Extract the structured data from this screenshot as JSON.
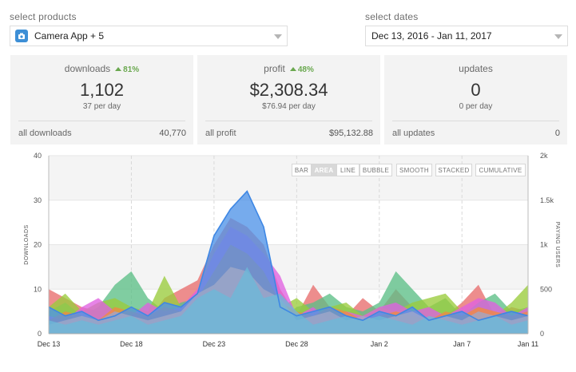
{
  "products": {
    "label": "select products",
    "value": "Camera App + 5"
  },
  "dates": {
    "label": "select dates",
    "value": "Dec 13, 2016 - Jan 11, 2017"
  },
  "cards": {
    "downloads": {
      "title": "downloads",
      "delta": "81%",
      "value": "1,102",
      "per_day": "37 per day",
      "footer_label": "all downloads",
      "footer_value": "40,770"
    },
    "profit": {
      "title": "profit",
      "delta": "48%",
      "value": "$2,308.34",
      "per_day": "$76.94 per day",
      "footer_label": "all profit",
      "footer_value": "$95,132.88"
    },
    "updates": {
      "title": "updates",
      "value": "0",
      "per_day": "0 per day",
      "footer_label": "all updates",
      "footer_value": "0"
    }
  },
  "chart_toolbar": {
    "bar": "BAR",
    "area": "AREA",
    "line": "LINE",
    "bubble": "BUBBLE",
    "smooth": "SMOOTH",
    "stacked": "STACKED",
    "cumulative": "CUMULATIVE",
    "active": "AREA"
  },
  "colors": {
    "accent_positive": "#6aa84f",
    "app_icon": "#3d8fd6"
  },
  "chart_data": {
    "type": "area",
    "ylabel": "DOWNLOADS",
    "y2label": "PAYING USERS",
    "ylim": [
      0,
      40
    ],
    "y2lim": [
      0,
      2000
    ],
    "yticks": [
      "0",
      "10",
      "20",
      "30",
      "40"
    ],
    "y2ticks": [
      "0",
      "500",
      "1k",
      "1.5k",
      "2k"
    ],
    "x_tick_labels": [
      "Dec 13",
      "Dec 18",
      "Dec 23",
      "Dec 28",
      "Jan 2",
      "Jan 7",
      "Jan 11"
    ],
    "x_tick_positions": [
      0,
      5,
      10,
      15,
      20,
      25,
      29
    ],
    "grid": true,
    "series": [
      {
        "color": "#e86d6d",
        "values": [
          10,
          8,
          6,
          5,
          6,
          4,
          3,
          8,
          10,
          12,
          20,
          26,
          24,
          20,
          10,
          4,
          11,
          6,
          4,
          8,
          5,
          10,
          6,
          4,
          4,
          7,
          11,
          4,
          6,
          5
        ]
      },
      {
        "color": "#5cbf86",
        "values": [
          5,
          7,
          4,
          6,
          11,
          14,
          8,
          5,
          7,
          8,
          11,
          15,
          14,
          9,
          3,
          6,
          7,
          9,
          6,
          5,
          7,
          14,
          10,
          6,
          8,
          4,
          7,
          9,
          5,
          6
        ]
      },
      {
        "color": "#9acc3c",
        "values": [
          6,
          9,
          5,
          7,
          8,
          6,
          5,
          13,
          6,
          9,
          12,
          16,
          15,
          10,
          6,
          8,
          5,
          6,
          7,
          4,
          6,
          5,
          7,
          8,
          9,
          5,
          6,
          4,
          7,
          11
        ]
      },
      {
        "color": "#e060e0",
        "values": [
          4,
          3,
          6,
          8,
          5,
          4,
          7,
          5,
          6,
          10,
          18,
          24,
          22,
          18,
          13,
          4,
          6,
          3,
          5,
          4,
          6,
          7,
          5,
          6,
          4,
          6,
          8,
          7,
          4,
          6
        ]
      },
      {
        "color": "#f08a40",
        "values": [
          3,
          5,
          4,
          3,
          6,
          5,
          4,
          6,
          5,
          8,
          14,
          20,
          18,
          14,
          7,
          5,
          4,
          6,
          5,
          3,
          4,
          5,
          4,
          3,
          5,
          4,
          6,
          5,
          4,
          5
        ]
      },
      {
        "color": "#4f93e8",
        "values": [
          6,
          4,
          5,
          3,
          4,
          6,
          4,
          7,
          6,
          9,
          22,
          28,
          32,
          24,
          6,
          4,
          5,
          6,
          4,
          3,
          5,
          4,
          6,
          3,
          4,
          5,
          3,
          4,
          5,
          4
        ]
      },
      {
        "color": "#a0a8c8",
        "values": [
          2,
          3,
          4,
          3,
          5,
          4,
          3,
          4,
          5,
          9,
          11,
          15,
          14,
          10,
          8,
          3,
          4,
          5,
          3,
          4,
          3,
          4,
          5,
          3,
          4,
          3,
          5,
          4,
          3,
          4
        ]
      },
      {
        "color": "#6cb8d8",
        "values": [
          3,
          2,
          3,
          2,
          3,
          4,
          2,
          3,
          4,
          8,
          10,
          8,
          15,
          8,
          9,
          5,
          2,
          3,
          4,
          3,
          4,
          3,
          2,
          4,
          3,
          2,
          3,
          4,
          2,
          3
        ]
      }
    ]
  }
}
